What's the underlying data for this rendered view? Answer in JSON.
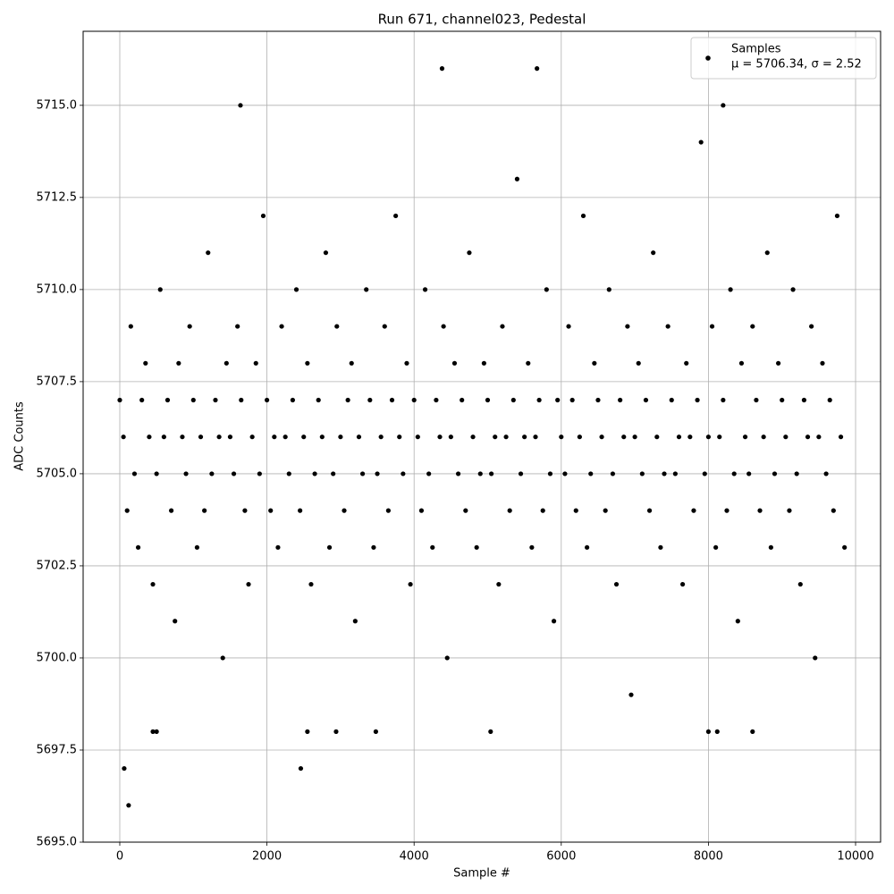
{
  "chart_data": {
    "type": "scatter",
    "title": "Run 671, channel023, Pedestal",
    "x_label": "Sample #",
    "y_label": "ADC Counts",
    "xlim": [
      -498,
      10340
    ],
    "ylim": [
      5695,
      5717.01
    ],
    "xticks": [
      0,
      2000,
      4000,
      6000,
      8000,
      10000
    ],
    "yticks": [
      {
        "value": 5695,
        "label": "5695.0"
      },
      {
        "value": 5697.5,
        "label": "5697.5"
      },
      {
        "value": 5700,
        "label": "5700.0"
      },
      {
        "value": 5702.5,
        "label": "5702.5"
      },
      {
        "value": 5705,
        "label": "5705.0"
      },
      {
        "value": 5707.5,
        "label": "5707.5"
      },
      {
        "value": 5710,
        "label": "5710.0"
      },
      {
        "value": 5712.5,
        "label": "5712.5"
      },
      {
        "value": 5715,
        "label": "5715.0"
      }
    ],
    "grid": true,
    "legend_loc": "upper right",
    "series": [
      {
        "name": "Samples",
        "label_extra": "μ = 5706.34, σ = 2.52",
        "color": "#000000",
        "x": [
          0,
          50,
          100,
          150,
          200,
          250,
          300,
          350,
          400,
          450,
          500,
          550,
          600,
          650,
          700,
          750,
          800,
          850,
          900,
          950,
          1000,
          1050,
          1100,
          1150,
          1200,
          1250,
          1300,
          1350,
          1400,
          1450,
          1500,
          1550,
          1600,
          1650,
          1700,
          1750,
          1800,
          1850,
          1900,
          1950,
          2000,
          2050,
          2100,
          2150,
          2200,
          2250,
          2300,
          2350,
          2400,
          2450,
          2500,
          2550,
          2600,
          2650,
          2700,
          2750,
          2800,
          2850,
          2900,
          2950,
          3000,
          3050,
          3100,
          3150,
          3200,
          3250,
          3300,
          3350,
          3400,
          3450,
          3500,
          3550,
          3600,
          3650,
          3700,
          3750,
          3800,
          3850,
          3900,
          3950,
          4000,
          4050,
          4100,
          4150,
          4200,
          4250,
          4300,
          4350,
          4400,
          4450,
          4500,
          4550,
          4600,
          4650,
          4700,
          4750,
          4800,
          4850,
          4900,
          4950,
          5000,
          5050,
          5100,
          5150,
          5200,
          5250,
          5300,
          5350,
          5400,
          5450,
          5500,
          5550,
          5600,
          5650,
          5700,
          5750,
          5800,
          5850,
          5900,
          5950,
          6000,
          6050,
          6100,
          6150,
          6200,
          6250,
          6300,
          6350,
          6400,
          6450,
          6500,
          6550,
          6600,
          6650,
          6700,
          6750,
          6800,
          6850,
          6900,
          6950,
          7000,
          7050,
          7100,
          7150,
          7200,
          7250,
          7300,
          7350,
          7400,
          7450,
          7500,
          7550,
          7600,
          7650,
          7700,
          7750,
          7800,
          7850,
          7900,
          7950,
          8000,
          8050,
          8100,
          8150,
          8200,
          8250,
          8300,
          8350,
          8400,
          8450,
          8500,
          8550,
          8600,
          8650,
          8700,
          8750,
          8800,
          8850,
          8900,
          8950,
          9000,
          9050,
          9100,
          9150,
          9200,
          9250,
          9300,
          9350,
          9400,
          9450,
          9500,
          9550,
          9600,
          9650,
          9700,
          9750,
          9800,
          9850,
          60,
          120,
          450,
          500,
          1640,
          2460,
          2550,
          2940,
          3480,
          4380,
          5040,
          5670,
          8000,
          8120,
          8200,
          8600
        ],
        "values": [
          5707,
          5706,
          5704,
          5709,
          5705,
          5703,
          5707,
          5708,
          5706,
          5702,
          5705,
          5710,
          5706,
          5707,
          5704,
          5701,
          5708,
          5706,
          5705,
          5709,
          5707,
          5703,
          5706,
          5704,
          5711,
          5705,
          5707,
          5706,
          5700,
          5708,
          5706,
          5705,
          5709,
          5707,
          5704,
          5702,
          5706,
          5708,
          5705,
          5712,
          5707,
          5704,
          5706,
          5703,
          5709,
          5706,
          5705,
          5707,
          5710,
          5704,
          5706,
          5708,
          5702,
          5705,
          5707,
          5706,
          5711,
          5703,
          5705,
          5709,
          5706,
          5704,
          5707,
          5708,
          5701,
          5706,
          5705,
          5710,
          5707,
          5703,
          5705,
          5706,
          5709,
          5704,
          5707,
          5712,
          5706,
          5705,
          5708,
          5702,
          5707,
          5706,
          5704,
          5710,
          5705,
          5703,
          5707,
          5706,
          5709,
          5700,
          5706,
          5708,
          5705,
          5707,
          5704,
          5711,
          5706,
          5703,
          5705,
          5708,
          5707,
          5705,
          5706,
          5702,
          5709,
          5706,
          5704,
          5707,
          5713,
          5705,
          5706,
          5708,
          5703,
          5706,
          5707,
          5704,
          5710,
          5705,
          5701,
          5707,
          5706,
          5705,
          5709,
          5707,
          5704,
          5706,
          5712,
          5703,
          5705,
          5708,
          5707,
          5706,
          5704,
          5710,
          5705,
          5702,
          5707,
          5706,
          5709,
          5699,
          5706,
          5708,
          5705,
          5707,
          5704,
          5711,
          5706,
          5703,
          5705,
          5709,
          5707,
          5705,
          5706,
          5702,
          5708,
          5706,
          5704,
          5707,
          5714,
          5705,
          5706,
          5709,
          5703,
          5706,
          5707,
          5704,
          5710,
          5705,
          5701,
          5708,
          5706,
          5705,
          5709,
          5707,
          5704,
          5706,
          5711,
          5703,
          5705,
          5708,
          5707,
          5706,
          5704,
          5710,
          5705,
          5702,
          5707,
          5706,
          5709,
          5700,
          5706,
          5708,
          5705,
          5707,
          5704,
          5712,
          5706,
          5703,
          5697,
          5696,
          5698,
          5698,
          5715,
          5697,
          5698,
          5698,
          5698,
          5716,
          5698,
          5716,
          5698,
          5698,
          5715,
          5698
        ]
      }
    ]
  }
}
